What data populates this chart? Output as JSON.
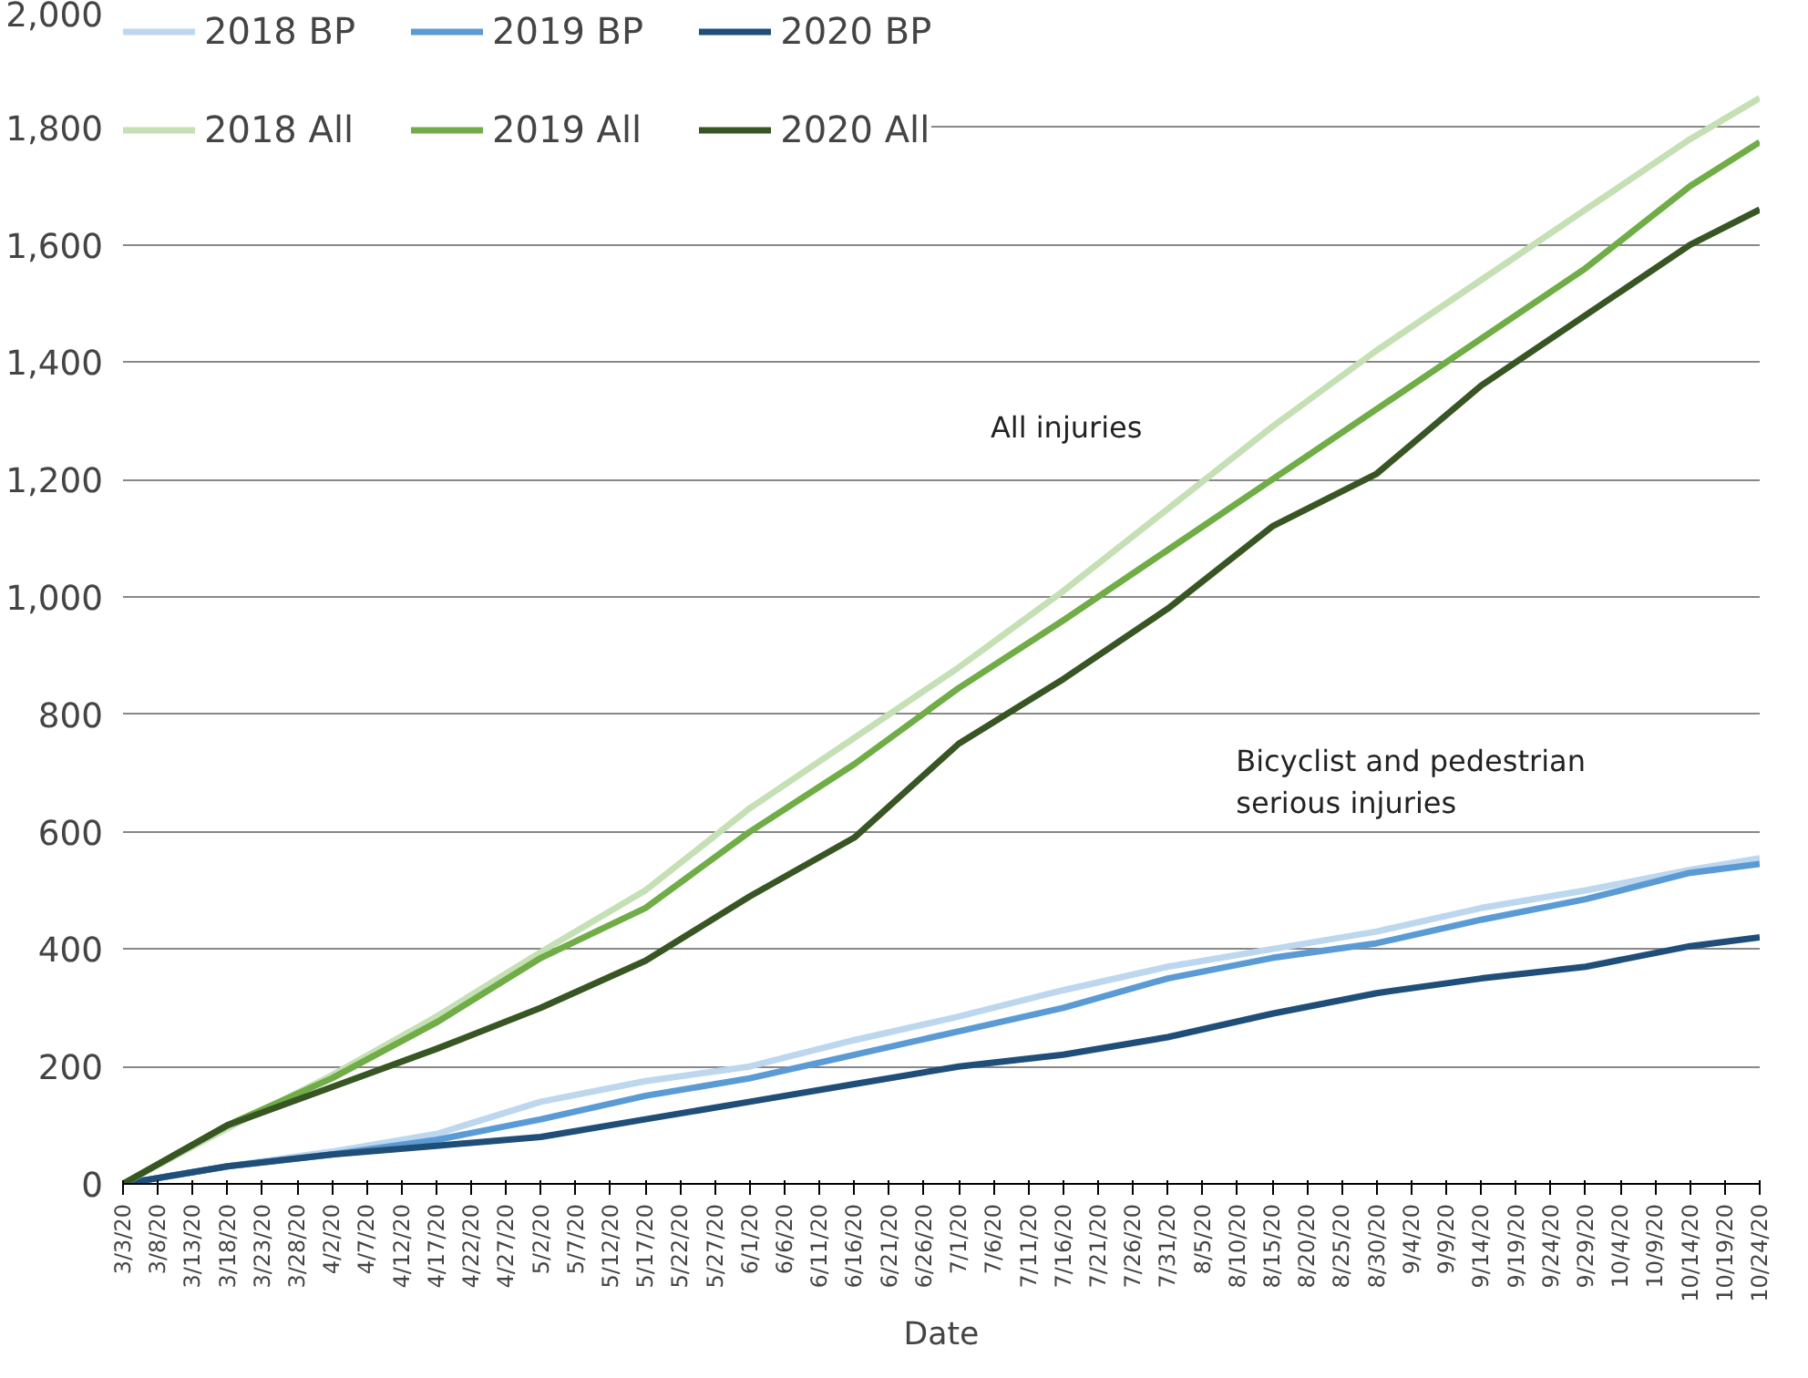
{
  "chart_data": {
    "type": "line",
    "xlabel": "Date",
    "legend": "top left",
    "grid": "y",
    "line_style": "solid",
    "x": [
      "2020-03-03",
      "2020-03-18",
      "2020-04-02",
      "2020-04-17",
      "2020-05-02",
      "2020-05-17",
      "2020-06-01",
      "2020-06-16",
      "2020-07-01",
      "2020-07-16",
      "2020-07-31",
      "2020-08-15",
      "2020-08-30",
      "2020-09-14",
      "2020-09-29",
      "2020-10-14",
      "2020-10-24"
    ],
    "series": [
      {
        "name": "2018 BP",
        "color": "#bdd7ee",
        "values": [
          0,
          30,
          55,
          85,
          140,
          175,
          200,
          245,
          285,
          330,
          370,
          400,
          430,
          470,
          500,
          535,
          555
        ]
      },
      {
        "name": "2019 BP",
        "color": "#5b9bd5",
        "values": [
          0,
          30,
          50,
          75,
          110,
          150,
          180,
          220,
          260,
          300,
          350,
          385,
          410,
          450,
          485,
          530,
          545
        ]
      },
      {
        "name": "2020 BP",
        "color": "#1f4e79",
        "values": [
          0,
          30,
          50,
          65,
          80,
          110,
          140,
          170,
          200,
          220,
          250,
          290,
          325,
          350,
          370,
          405,
          420
        ]
      },
      {
        "name": "2018 All",
        "color": "#c5e0b4",
        "values": [
          0,
          95,
          185,
          285,
          395,
          500,
          640,
          760,
          880,
          1010,
          1150,
          1290,
          1420,
          1540,
          1660,
          1780,
          1850
        ]
      },
      {
        "name": "2019 All",
        "color": "#70ad47",
        "values": [
          0,
          100,
          180,
          275,
          385,
          470,
          600,
          715,
          845,
          960,
          1080,
          1200,
          1320,
          1440,
          1560,
          1700,
          1775
        ]
      },
      {
        "name": "2020 All",
        "color": "#375623",
        "values": [
          0,
          100,
          165,
          230,
          300,
          380,
          490,
          590,
          750,
          860,
          980,
          1120,
          1210,
          1360,
          1480,
          1600,
          1660
        ]
      }
    ],
    "annotations": [
      "All injuries",
      "Bicyclist and pedestrian\nserious injuries"
    ],
    "xlim": [
      "2020-03-03",
      "2020-10-24"
    ],
    "xticks": [
      {
        "value": "2020-03-03",
        "label": "3/3/20"
      },
      {
        "value": "2020-03-08",
        "label": "3/8/20"
      },
      {
        "value": "2020-03-13",
        "label": "3/13/20"
      },
      {
        "value": "2020-03-18",
        "label": "3/18/20"
      },
      {
        "value": "2020-03-23",
        "label": "3/23/20"
      },
      {
        "value": "2020-03-28",
        "label": "3/28/20"
      },
      {
        "value": "2020-04-02",
        "label": "4/2/20"
      },
      {
        "value": "2020-04-07",
        "label": "4/7/20"
      },
      {
        "value": "2020-04-12",
        "label": "4/12/20"
      },
      {
        "value": "2020-04-17",
        "label": "4/17/20"
      },
      {
        "value": "2020-04-22",
        "label": "4/22/20"
      },
      {
        "value": "2020-04-27",
        "label": "4/27/20"
      },
      {
        "value": "2020-05-02",
        "label": "5/2/20"
      },
      {
        "value": "2020-05-07",
        "label": "5/7/20"
      },
      {
        "value": "2020-05-12",
        "label": "5/12/20"
      },
      {
        "value": "2020-05-17",
        "label": "5/17/20"
      },
      {
        "value": "2020-05-22",
        "label": "5/22/20"
      },
      {
        "value": "2020-05-27",
        "label": "5/27/20"
      },
      {
        "value": "2020-06-01",
        "label": "6/1/20"
      },
      {
        "value": "2020-06-06",
        "label": "6/6/20"
      },
      {
        "value": "2020-06-11",
        "label": "6/11/20"
      },
      {
        "value": "2020-06-16",
        "label": "6/16/20"
      },
      {
        "value": "2020-06-21",
        "label": "6/21/20"
      },
      {
        "value": "2020-06-26",
        "label": "6/26/20"
      },
      {
        "value": "2020-07-01",
        "label": "7/1/20"
      },
      {
        "value": "2020-07-06",
        "label": "7/6/20"
      },
      {
        "value": "2020-07-11",
        "label": "7/11/20"
      },
      {
        "value": "2020-07-16",
        "label": "7/16/20"
      },
      {
        "value": "2020-07-21",
        "label": "7/21/20"
      },
      {
        "value": "2020-07-26",
        "label": "7/26/20"
      },
      {
        "value": "2020-07-31",
        "label": "7/31/20"
      },
      {
        "value": "2020-08-05",
        "label": "8/5/20"
      },
      {
        "value": "2020-08-10",
        "label": "8/10/20"
      },
      {
        "value": "2020-08-15",
        "label": "8/15/20"
      },
      {
        "value": "2020-08-20",
        "label": "8/20/20"
      },
      {
        "value": "2020-08-25",
        "label": "8/25/20"
      },
      {
        "value": "2020-08-30",
        "label": "8/30/20"
      },
      {
        "value": "2020-09-04",
        "label": "9/4/20"
      },
      {
        "value": "2020-09-09",
        "label": "9/9/20"
      },
      {
        "value": "2020-09-14",
        "label": "9/14/20"
      },
      {
        "value": "2020-09-19",
        "label": "9/19/20"
      },
      {
        "value": "2020-09-24",
        "label": "9/24/20"
      },
      {
        "value": "2020-09-29",
        "label": "9/29/20"
      },
      {
        "value": "2020-10-04",
        "label": "10/4/20"
      },
      {
        "value": "2020-10-09",
        "label": "10/9/20"
      },
      {
        "value": "2020-10-14",
        "label": "10/14/20"
      },
      {
        "value": "2020-10-19",
        "label": "10/19/20"
      },
      {
        "value": "2020-10-24",
        "label": "10/24/20"
      }
    ],
    "ylim": [
      0,
      2000
    ],
    "yticks": [
      0,
      200,
      400,
      600,
      800,
      {
        "value": 1000,
        "label": "1,000"
      },
      {
        "value": 1200,
        "label": "1,200"
      },
      {
        "value": 1400,
        "label": "1,400"
      },
      {
        "value": 1600,
        "label": "1,600"
      },
      {
        "value": 1800,
        "label": "1,800"
      },
      {
        "value": 2000,
        "label": "2,000"
      }
    ]
  }
}
